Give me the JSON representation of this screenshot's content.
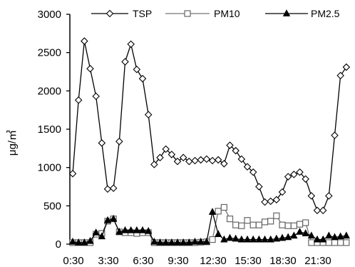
{
  "chart_data": {
    "type": "line",
    "title": "",
    "xlabel": "",
    "ylabel": "μg/㎥",
    "ylim": [
      0,
      3000
    ],
    "yticks": [
      "0",
      "500",
      "1000",
      "1500",
      "2000",
      "2500",
      "3000"
    ],
    "x_tick_labels": [
      "0:30",
      "3:30",
      "6:30",
      "9:30",
      "12:30",
      "15:30",
      "18:30",
      "21:30"
    ],
    "x_tick_positions": [
      0,
      6,
      12,
      18,
      24,
      30,
      36,
      42
    ],
    "x_range": [
      0,
      48
    ],
    "grid": false,
    "legend_position": "top",
    "series": [
      {
        "name": "TSP",
        "marker": "diamond",
        "x": [
          0,
          1,
          2,
          3,
          4,
          5,
          6,
          7,
          8,
          9,
          10,
          11,
          12,
          13,
          14,
          15,
          16,
          17,
          18,
          19,
          20,
          21,
          22,
          23,
          24,
          25,
          26,
          27,
          28,
          29,
          30,
          31,
          32,
          33,
          34,
          35,
          36,
          37,
          38,
          39,
          40,
          41,
          42,
          43,
          44,
          45,
          46,
          47
        ],
        "values": [
          920,
          1880,
          2650,
          2290,
          1930,
          1320,
          720,
          730,
          1340,
          2380,
          2610,
          2280,
          2160,
          1690,
          1040,
          1130,
          1240,
          1170,
          1080,
          1130,
          1080,
          1090,
          1100,
          1110,
          1090,
          1100,
          1050,
          1290,
          1220,
          1110,
          1010,
          940,
          750,
          550,
          560,
          580,
          680,
          880,
          910,
          940,
          850,
          630,
          440,
          440,
          630,
          1420,
          2200,
          2310
        ]
      },
      {
        "name": "PM10",
        "marker": "square",
        "x": [
          0,
          1,
          2,
          3,
          4,
          5,
          6,
          7,
          8,
          9,
          10,
          11,
          12,
          13,
          14,
          15,
          16,
          17,
          18,
          19,
          20,
          21,
          22,
          23,
          24,
          25,
          26,
          27,
          28,
          29,
          30,
          31,
          32,
          33,
          34,
          35,
          36,
          37,
          38,
          39,
          40,
          41,
          42,
          43,
          44,
          45,
          46,
          47
        ],
        "values": [
          20,
          20,
          20,
          20,
          130,
          140,
          300,
          330,
          160,
          150,
          150,
          140,
          150,
          150,
          20,
          20,
          20,
          20,
          20,
          20,
          20,
          20,
          25,
          30,
          60,
          430,
          480,
          330,
          250,
          240,
          310,
          250,
          250,
          290,
          300,
          370,
          250,
          240,
          240,
          260,
          280,
          20,
          20,
          20,
          20,
          20,
          20,
          20
        ]
      },
      {
        "name": "PM2.5",
        "marker": "triangle",
        "x": [
          0,
          1,
          2,
          3,
          4,
          5,
          6,
          7,
          8,
          9,
          10,
          11,
          12,
          13,
          14,
          15,
          16,
          17,
          18,
          19,
          20,
          21,
          22,
          23,
          24,
          25,
          26,
          27,
          28,
          29,
          30,
          31,
          32,
          33,
          34,
          35,
          36,
          37,
          38,
          39,
          40,
          41,
          42,
          43,
          44,
          45,
          46,
          47
        ],
        "values": [
          30,
          20,
          20,
          40,
          150,
          100,
          310,
          330,
          160,
          180,
          180,
          180,
          180,
          170,
          30,
          20,
          20,
          20,
          20,
          20,
          20,
          30,
          30,
          30,
          420,
          130,
          60,
          80,
          70,
          60,
          60,
          60,
          60,
          60,
          60,
          70,
          80,
          90,
          110,
          160,
          140,
          110,
          60,
          60,
          110,
          90,
          100,
          110
        ]
      }
    ]
  }
}
